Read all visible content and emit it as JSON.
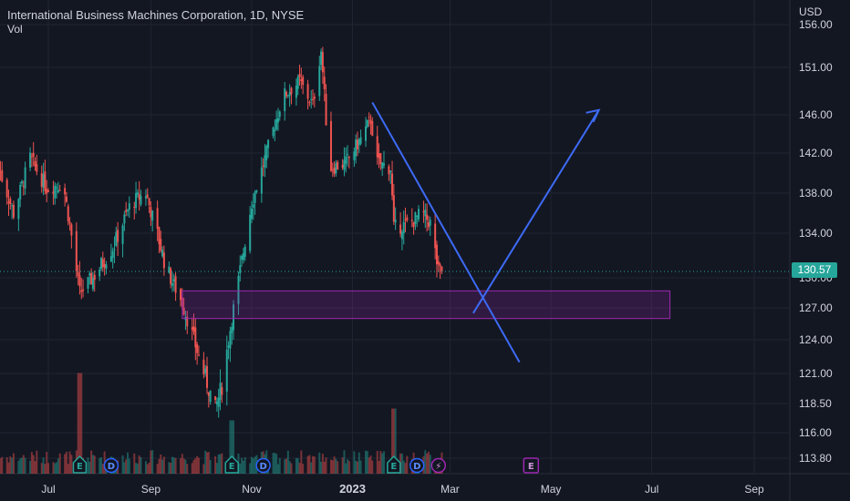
{
  "header": {
    "title": "International Business Machines Corporation, 1D, NYSE",
    "volume_label": "Vol",
    "currency": "USD"
  },
  "current_price": "130.57",
  "colors": {
    "background": "#131722",
    "up": "#26a69a",
    "down": "#ef5350",
    "drawing": "#3d6af5",
    "zone": "#9c27b0",
    "grid": "#1f2431",
    "text": "#d1d4dc"
  },
  "chart_data": {
    "type": "candlestick",
    "symbol": "IBM",
    "interval": "1D",
    "exchange": "NYSE",
    "x_ticks": [
      "Jul",
      "Sep",
      "Nov",
      "2023",
      "Mar",
      "May",
      "Jul",
      "Sep"
    ],
    "y_ticks": [
      "113.80",
      "116.00",
      "118.50",
      "121.00",
      "124.00",
      "127.00",
      "130.00",
      "134.00",
      "138.00",
      "142.00",
      "146.00",
      "151.00",
      "156.00"
    ],
    "ylim": [
      112.5,
      156.5
    ],
    "grid": true,
    "last_price": 130.57,
    "price_path": [
      {
        "date": "2022-06-01",
        "close": 140.5
      },
      {
        "date": "2022-06-10",
        "close": 136.0
      },
      {
        "date": "2022-06-20",
        "close": 141.5
      },
      {
        "date": "2022-06-30",
        "close": 138.5
      },
      {
        "date": "2022-07-10",
        "close": 139.0
      },
      {
        "date": "2022-07-20",
        "close": 128.5
      },
      {
        "date": "2022-07-28",
        "close": 130.0
      },
      {
        "date": "2022-08-10",
        "close": 133.0
      },
      {
        "date": "2022-08-20",
        "close": 137.0
      },
      {
        "date": "2022-08-29",
        "close": 138.0
      },
      {
        "date": "2022-09-10",
        "close": 131.0
      },
      {
        "date": "2022-09-20",
        "close": 127.5
      },
      {
        "date": "2022-10-01",
        "close": 122.0
      },
      {
        "date": "2022-10-10",
        "close": 118.0
      },
      {
        "date": "2022-10-14",
        "close": 120.0
      },
      {
        "date": "2022-10-20",
        "close": 126.0
      },
      {
        "date": "2022-11-01",
        "close": 137.0
      },
      {
        "date": "2022-11-10",
        "close": 142.0
      },
      {
        "date": "2022-11-20",
        "close": 148.0
      },
      {
        "date": "2022-11-30",
        "close": 149.5
      },
      {
        "date": "2022-12-08",
        "close": 147.0
      },
      {
        "date": "2022-12-13",
        "close": 153.0
      },
      {
        "date": "2022-12-18",
        "close": 140.5
      },
      {
        "date": "2022-12-28",
        "close": 141.0
      },
      {
        "date": "2023-01-06",
        "close": 143.5
      },
      {
        "date": "2023-01-12",
        "close": 145.5
      },
      {
        "date": "2023-01-16",
        "close": 141.0
      },
      {
        "date": "2023-01-24",
        "close": 140.5
      },
      {
        "date": "2023-01-26",
        "close": 134.5
      },
      {
        "date": "2023-02-05",
        "close": 135.0
      },
      {
        "date": "2023-02-12",
        "close": 136.0
      },
      {
        "date": "2023-02-17",
        "close": 135.0
      },
      {
        "date": "2023-02-22",
        "close": 130.5
      },
      {
        "date": "2023-02-25",
        "close": 130.57
      }
    ],
    "volume_spikes": [
      {
        "date": "2022-07-20",
        "level": 0.85
      },
      {
        "date": "2022-10-20",
        "level": 0.45
      },
      {
        "date": "2023-01-26",
        "level": 0.55
      }
    ],
    "event_markers": [
      {
        "date": "2022-07-20",
        "label": "E",
        "kind": "earnings"
      },
      {
        "date": "2022-08-08",
        "label": "D",
        "kind": "dividend"
      },
      {
        "date": "2022-10-20",
        "label": "E",
        "kind": "earnings"
      },
      {
        "date": "2022-11-08",
        "label": "D",
        "kind": "dividend"
      },
      {
        "date": "2023-01-26",
        "label": "E",
        "kind": "earnings"
      },
      {
        "date": "2023-02-09",
        "label": "D",
        "kind": "dividend"
      },
      {
        "date": "2023-02-22",
        "label": "⚡",
        "kind": "split"
      },
      {
        "date": "2023-04-19",
        "label": "E",
        "kind": "earnings-upcoming"
      }
    ],
    "drawings": {
      "rectangle": {
        "start_date": "2022-09-20",
        "end_date": "2023-07-12",
        "top": 128.7,
        "bottom": 126.0
      },
      "lines": [
        {
          "from": {
            "date": "2023-01-13",
            "price": 147.3
          },
          "to": {
            "date": "2023-04-12",
            "price": 122.0
          }
        },
        {
          "from": {
            "date": "2023-03-15",
            "price": 126.5
          },
          "to": {
            "date": "2023-05-30",
            "price": 146.5
          }
        }
      ]
    }
  }
}
